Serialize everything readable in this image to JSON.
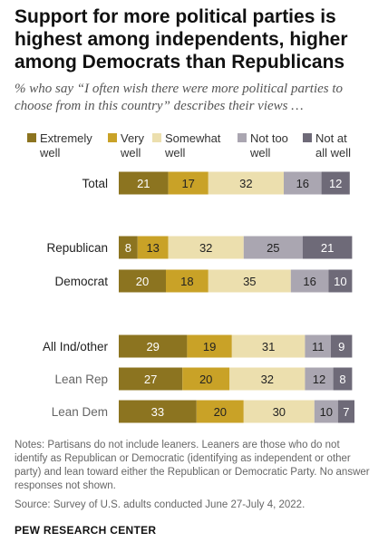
{
  "title": "Support for more political parties is highest among independents, higher among Democrats than Republicans",
  "subtitle": "% who say “I often wish there were more political parties to choose from in this country” describes their views …",
  "chart_data": {
    "type": "bar",
    "orientation": "horizontal",
    "stacked": true,
    "legend_position": "top",
    "categories": [
      "Total",
      "Republican",
      "Democrat",
      "All Ind/other",
      "Lean Rep",
      "Lean Dem"
    ],
    "series": [
      {
        "name": "Extremely\nwell",
        "color": "#8c7420",
        "text_color": "#ffffff",
        "values": [
          21,
          8,
          20,
          29,
          27,
          33
        ]
      },
      {
        "name": "Very\nwell",
        "color": "#c9a227",
        "text_color": "#222222",
        "values": [
          17,
          13,
          18,
          19,
          20,
          20
        ]
      },
      {
        "name": "Somewhat\nwell",
        "color": "#ecdfae",
        "text_color": "#222222",
        "values": [
          32,
          32,
          35,
          31,
          32,
          30
        ]
      },
      {
        "name": "Not too\nwell",
        "color": "#aaa6b1",
        "text_color": "#222222",
        "values": [
          16,
          25,
          16,
          11,
          12,
          10
        ]
      },
      {
        "name": "Not at\nall well",
        "color": "#6e6a78",
        "text_color": "#ffffff",
        "values": [
          12,
          21,
          10,
          9,
          8,
          7
        ]
      }
    ]
  },
  "notes_line": "Notes: Partisans do not include leaners. Leaners are those who do not identify as Republican or Democratic (identifying as independent or other party) and lean toward either the Republican or Democratic Party. No answer responses not shown.",
  "source_line": "Source: Survey of U.S. adults conducted June 27-July 4, 2022.",
  "organization": "PEW RESEARCH CENTER"
}
